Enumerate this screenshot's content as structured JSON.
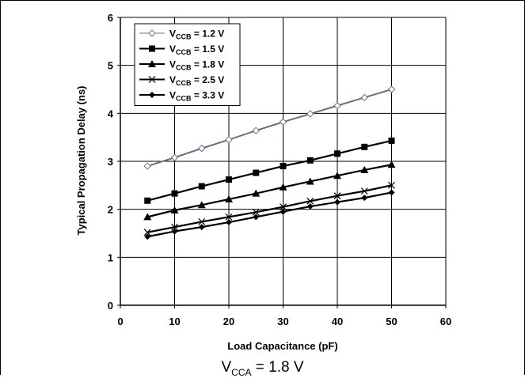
{
  "chart_data": {
    "type": "line",
    "x": [
      5,
      10,
      15,
      20,
      25,
      30,
      35,
      40,
      45,
      50
    ],
    "xlim": [
      0,
      60
    ],
    "ylim": [
      0,
      6
    ],
    "xticks": [
      "0",
      "10",
      "20",
      "30",
      "40",
      "50",
      "60"
    ],
    "yticks": [
      "0",
      "1",
      "2",
      "3",
      "4",
      "5",
      "6"
    ],
    "xlabel": "Load Capacitance (pF)",
    "ylabel": "Typical Propagation Delay (ns)",
    "grid": true,
    "legend_position": "top-left",
    "series": [
      {
        "name_main": "V",
        "name_sub": "CCB",
        "name_rest": " = 1.2 V",
        "marker": "diamond-open",
        "line_color": "#6b6b8f",
        "values": [
          2.9,
          3.08,
          3.27,
          3.45,
          3.64,
          3.82,
          3.99,
          4.16,
          4.33,
          4.5
        ]
      },
      {
        "name_main": "V",
        "name_sub": "CCB",
        "name_rest": " = 1.5 V",
        "marker": "square",
        "line_color": "#000000",
        "values": [
          2.18,
          2.33,
          2.48,
          2.62,
          2.76,
          2.9,
          3.02,
          3.16,
          3.3,
          3.43
        ]
      },
      {
        "name_main": "V",
        "name_sub": "CCB",
        "name_rest": " = 1.8 V",
        "marker": "triangle",
        "line_color": "#000000",
        "values": [
          1.84,
          1.98,
          2.09,
          2.21,
          2.33,
          2.46,
          2.58,
          2.7,
          2.82,
          2.93
        ]
      },
      {
        "name_main": "V",
        "name_sub": "CCB",
        "name_rest": " = 2.5 V",
        "marker": "x",
        "line_color": "#000000",
        "values": [
          1.52,
          1.63,
          1.74,
          1.84,
          1.94,
          2.05,
          2.17,
          2.28,
          2.38,
          2.5
        ]
      },
      {
        "name_main": "V",
        "name_sub": "CCB",
        "name_rest": " = 3.3 V",
        "marker": "diamond",
        "line_color": "#000000",
        "values": [
          1.43,
          1.54,
          1.63,
          1.73,
          1.84,
          1.95,
          2.06,
          2.15,
          2.24,
          2.35
        ]
      }
    ]
  },
  "caption": {
    "main": "V",
    "sub": "CCA",
    "rest": " = 1.8 V"
  }
}
